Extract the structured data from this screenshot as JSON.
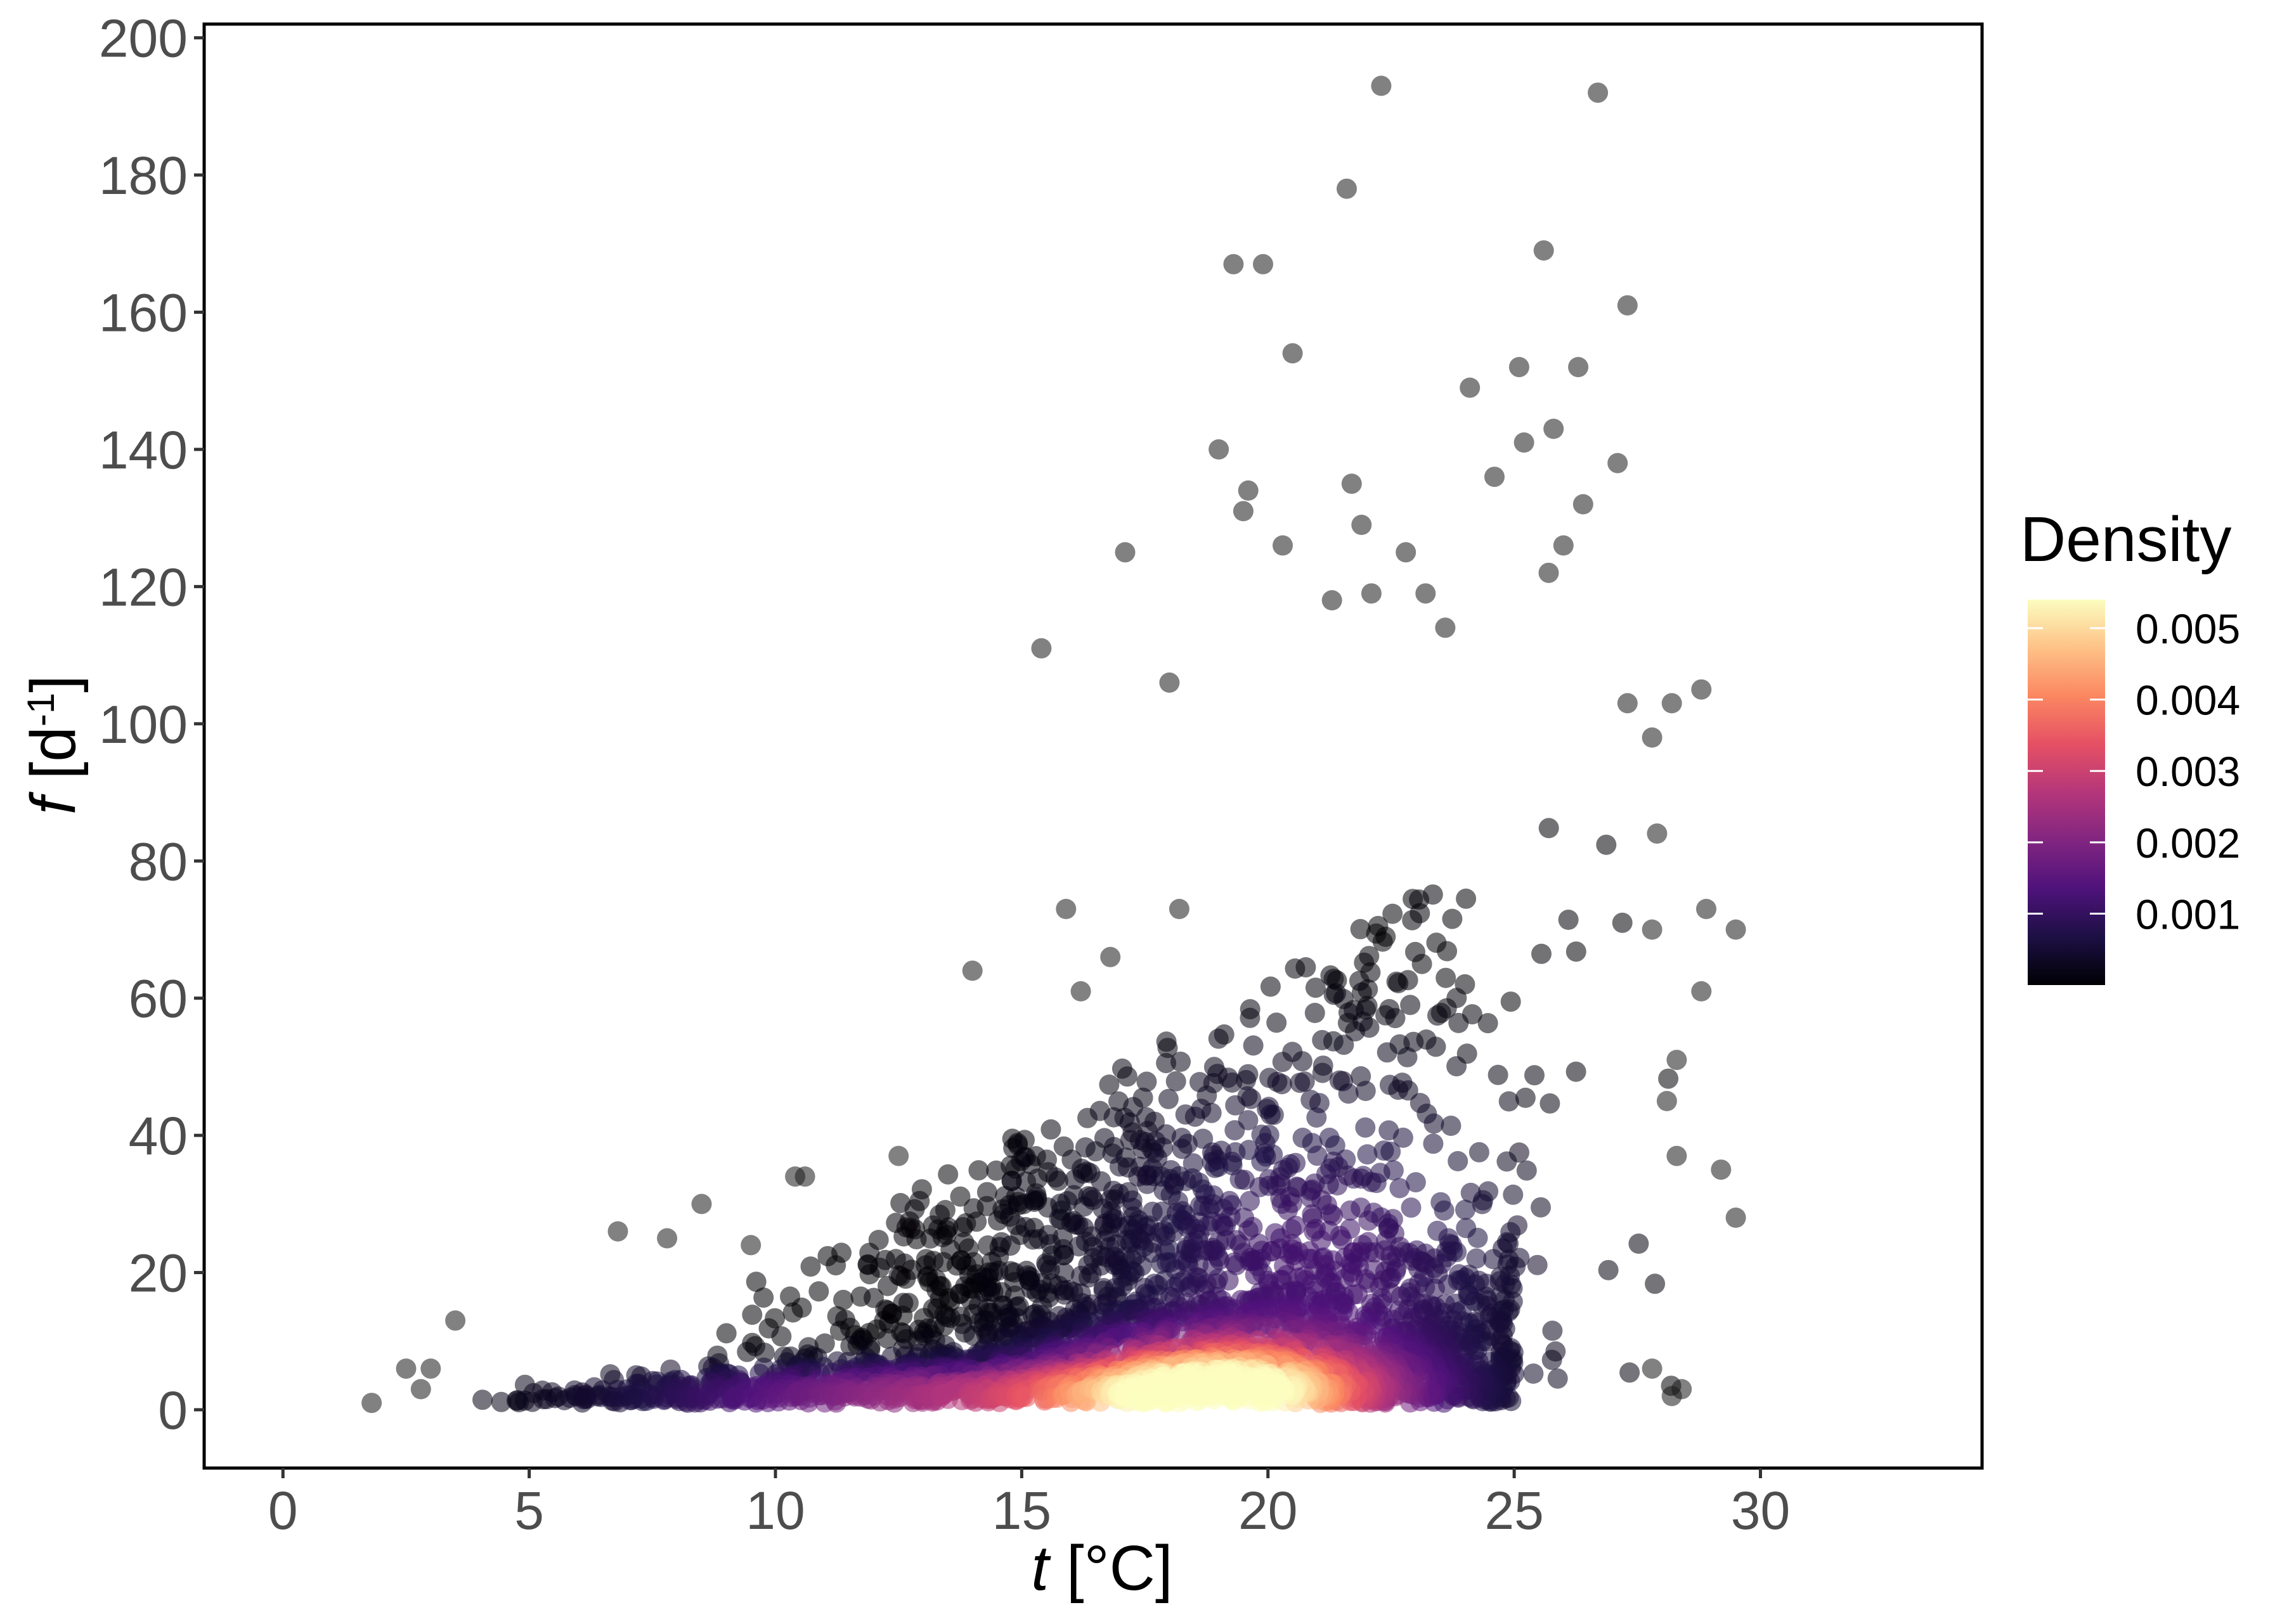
{
  "chart_data": {
    "type": "scatter",
    "title": "",
    "xlabel": {
      "symbol": "t",
      "unit": " [°C]"
    },
    "ylabel": {
      "symbol": "f",
      "unit_open": " [d",
      "unit_exp": "-1",
      "unit_close": "]"
    },
    "xlim": [
      -1.6,
      34.5
    ],
    "ylim": [
      -8.5,
      202
    ],
    "x_ticks": [
      0,
      5,
      10,
      15,
      20,
      25,
      30
    ],
    "y_ticks": [
      0,
      20,
      40,
      60,
      80,
      100,
      120,
      140,
      160,
      180,
      200
    ],
    "grid": false,
    "point_color": "density",
    "outlier_color": "#1a1a1a",
    "legend": {
      "title": "Density",
      "position": "right",
      "range": [
        0,
        0.0054
      ],
      "ticks": [
        0.001,
        0.002,
        0.003,
        0.004,
        0.005
      ],
      "tick_labels": [
        "0.001",
        "0.002",
        "0.003",
        "0.004",
        "0.005"
      ],
      "colormap": "magma",
      "colors": [
        "#000004",
        "#1c1044",
        "#4f127b",
        "#812581",
        "#b5367a",
        "#e55064",
        "#fb8761",
        "#fec287",
        "#fcfdbf"
      ]
    },
    "outliers": [
      {
        "x": 1.8,
        "y": 1
      },
      {
        "x": 2.5,
        "y": 6
      },
      {
        "x": 2.8,
        "y": 3
      },
      {
        "x": 3.0,
        "y": 6
      },
      {
        "x": 3.5,
        "y": 13
      },
      {
        "x": 6.8,
        "y": 26
      },
      {
        "x": 7.8,
        "y": 25
      },
      {
        "x": 8.5,
        "y": 30
      },
      {
        "x": 9.5,
        "y": 24
      },
      {
        "x": 10.4,
        "y": 34
      },
      {
        "x": 10.6,
        "y": 34
      },
      {
        "x": 12.5,
        "y": 37
      },
      {
        "x": 14.0,
        "y": 64
      },
      {
        "x": 15.4,
        "y": 111
      },
      {
        "x": 15.9,
        "y": 73
      },
      {
        "x": 16.2,
        "y": 61
      },
      {
        "x": 16.8,
        "y": 66
      },
      {
        "x": 17.1,
        "y": 125
      },
      {
        "x": 18.0,
        "y": 106
      },
      {
        "x": 18.2,
        "y": 73
      },
      {
        "x": 19.0,
        "y": 140
      },
      {
        "x": 19.3,
        "y": 167
      },
      {
        "x": 19.5,
        "y": 131
      },
      {
        "x": 19.6,
        "y": 134
      },
      {
        "x": 19.9,
        "y": 167
      },
      {
        "x": 20.3,
        "y": 126
      },
      {
        "x": 20.5,
        "y": 154
      },
      {
        "x": 21.3,
        "y": 118
      },
      {
        "x": 21.6,
        "y": 178
      },
      {
        "x": 21.7,
        "y": 135
      },
      {
        "x": 21.9,
        "y": 129
      },
      {
        "x": 22.1,
        "y": 119
      },
      {
        "x": 22.3,
        "y": 193
      },
      {
        "x": 22.8,
        "y": 125
      },
      {
        "x": 23.2,
        "y": 119
      },
      {
        "x": 23.6,
        "y": 114
      },
      {
        "x": 24.1,
        "y": 149
      },
      {
        "x": 24.6,
        "y": 136
      },
      {
        "x": 25.1,
        "y": 152
      },
      {
        "x": 25.2,
        "y": 141
      },
      {
        "x": 25.6,
        "y": 169
      },
      {
        "x": 25.7,
        "y": 122
      },
      {
        "x": 25.8,
        "y": 143
      },
      {
        "x": 26.0,
        "y": 126
      },
      {
        "x": 26.3,
        "y": 152
      },
      {
        "x": 26.4,
        "y": 132
      },
      {
        "x": 26.7,
        "y": 192
      },
      {
        "x": 27.1,
        "y": 138
      },
      {
        "x": 27.3,
        "y": 161
      },
      {
        "x": 27.3,
        "y": 103
      },
      {
        "x": 27.8,
        "y": 98
      },
      {
        "x": 27.9,
        "y": 84
      },
      {
        "x": 27.8,
        "y": 70
      },
      {
        "x": 28.2,
        "y": 103
      },
      {
        "x": 28.8,
        "y": 105
      },
      {
        "x": 28.9,
        "y": 73
      },
      {
        "x": 28.8,
        "y": 61
      },
      {
        "x": 28.3,
        "y": 51
      },
      {
        "x": 28.1,
        "y": 45
      },
      {
        "x": 28.3,
        "y": 37
      },
      {
        "x": 29.2,
        "y": 35
      },
      {
        "x": 29.5,
        "y": 28
      },
      {
        "x": 29.5,
        "y": 70
      },
      {
        "x": 27.8,
        "y": 6
      },
      {
        "x": 28.2,
        "y": 2
      },
      {
        "x": 28.4,
        "y": 3
      }
    ]
  }
}
